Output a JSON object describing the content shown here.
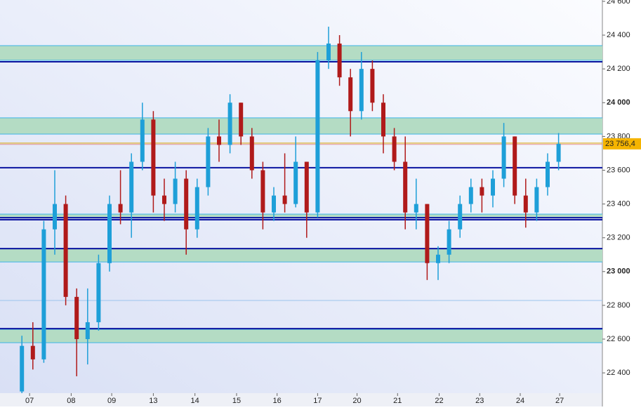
{
  "chart_data": {
    "type": "candlestick",
    "x": [
      2,
      3,
      4,
      5,
      6,
      7,
      8,
      9,
      10,
      11,
      12,
      13,
      14,
      15,
      16,
      17,
      18,
      19,
      20,
      21,
      22,
      23,
      24,
      25,
      26,
      27,
      28,
      29,
      30,
      31,
      32,
      33,
      34,
      35,
      36,
      37,
      38,
      39,
      40,
      41,
      42,
      43,
      44,
      45,
      46,
      47,
      48,
      49,
      50,
      51
    ],
    "open": [
      22290,
      22560,
      22480,
      23250,
      23400,
      22850,
      22600,
      22700,
      23050,
      23400,
      23350,
      23650,
      23900,
      23450,
      23400,
      23550,
      23250,
      23500,
      23800,
      23750,
      24000,
      23800,
      23600,
      23350,
      23450,
      23400,
      23650,
      23350,
      24250,
      24350,
      24150,
      23950,
      24200,
      24000,
      23800,
      23650,
      23350,
      23400,
      23050,
      23100,
      23250,
      23400,
      23500,
      23450,
      23550,
      23800,
      23450,
      23350,
      23500,
      23650
    ],
    "high": [
      22620,
      22700,
      23300,
      23600,
      23450,
      22900,
      22900,
      23100,
      23450,
      23600,
      23700,
      24000,
      23950,
      23550,
      23650,
      23600,
      23550,
      23850,
      23900,
      24050,
      24000,
      23850,
      23650,
      23500,
      23700,
      23800,
      23650,
      24300,
      24450,
      24400,
      24200,
      24300,
      24250,
      24050,
      23850,
      23800,
      23550,
      23400,
      23150,
      23300,
      23450,
      23550,
      23550,
      23600,
      23880,
      23800,
      23550,
      23550,
      23700,
      23820
    ],
    "low": [
      22280,
      22420,
      22460,
      23100,
      22800,
      22380,
      22450,
      22650,
      23000,
      23280,
      23200,
      23600,
      23350,
      23300,
      23350,
      23100,
      23200,
      23450,
      23650,
      23700,
      23750,
      23550,
      23250,
      23300,
      23350,
      23380,
      23200,
      23320,
      24200,
      24100,
      23800,
      23900,
      23950,
      23700,
      23600,
      23250,
      23250,
      22950,
      22950,
      23050,
      23200,
      23350,
      23350,
      23380,
      23500,
      23400,
      23260,
      23300,
      23450,
      23600
    ],
    "close": [
      22560,
      22480,
      23250,
      23400,
      22850,
      22600,
      22700,
      23050,
      23400,
      23350,
      23650,
      23900,
      23450,
      23400,
      23550,
      23250,
      23500,
      23800,
      23750,
      24000,
      23800,
      23600,
      23350,
      23450,
      23400,
      23650,
      23350,
      24250,
      24350,
      24150,
      23950,
      24200,
      24000,
      23800,
      23650,
      23350,
      23400,
      23050,
      23100,
      23250,
      23400,
      23500,
      23450,
      23550,
      23800,
      23450,
      23350,
      23500,
      23650,
      23756.4
    ],
    "up_color": "#1e9fd8",
    "down_color": "#b01a1a",
    "xlim": [
      0,
      55
    ],
    "xticks": [
      {
        "value": 2.7,
        "label": "07"
      },
      {
        "value": 6.5,
        "label": "08"
      },
      {
        "value": 10.2,
        "label": "09"
      },
      {
        "value": 14.0,
        "label": "13"
      },
      {
        "value": 17.8,
        "label": "14"
      },
      {
        "value": 21.6,
        "label": "15"
      },
      {
        "value": 25.3,
        "label": "16"
      },
      {
        "value": 29.0,
        "label": "17"
      },
      {
        "value": 32.6,
        "label": "20"
      },
      {
        "value": 36.3,
        "label": "21"
      },
      {
        "value": 40.1,
        "label": "22"
      },
      {
        "value": 43.8,
        "label": "23"
      },
      {
        "value": 47.5,
        "label": "24"
      },
      {
        "value": 51.1,
        "label": "27"
      }
    ],
    "ylim": [
      22280,
      24608
    ],
    "yticks": [
      {
        "value": 22400,
        "label": "22 400"
      },
      {
        "value": 22600,
        "label": "22 600"
      },
      {
        "value": 22800,
        "label": "22 800"
      },
      {
        "value": 23000,
        "label": "23 000"
      },
      {
        "value": 23200,
        "label": "23 200"
      },
      {
        "value": 23400,
        "label": "23 400"
      },
      {
        "value": 23600,
        "label": "23 600"
      },
      {
        "value": 23800,
        "label": "23 800"
      },
      {
        "value": 24000,
        "label": "24 000"
      },
      {
        "value": 24200,
        "label": "24 200"
      },
      {
        "value": 24400,
        "label": "24 400"
      },
      {
        "value": 24600,
        "label": "24 600"
      }
    ],
    "zones": [
      [
        24251,
        24338
      ],
      [
        23814,
        23910
      ],
      [
        23320,
        23340
      ],
      [
        23057,
        23136
      ],
      [
        22579,
        22658
      ]
    ],
    "zone_color": "#b4dcc4",
    "levels": [
      24242,
      23615,
      23319,
      23307,
      23136,
      22662
    ],
    "level_color": "#0a14a0",
    "faint_levels": [
      22829
    ],
    "last_price": {
      "value": 23756.4,
      "label": "23 756,4"
    }
  }
}
